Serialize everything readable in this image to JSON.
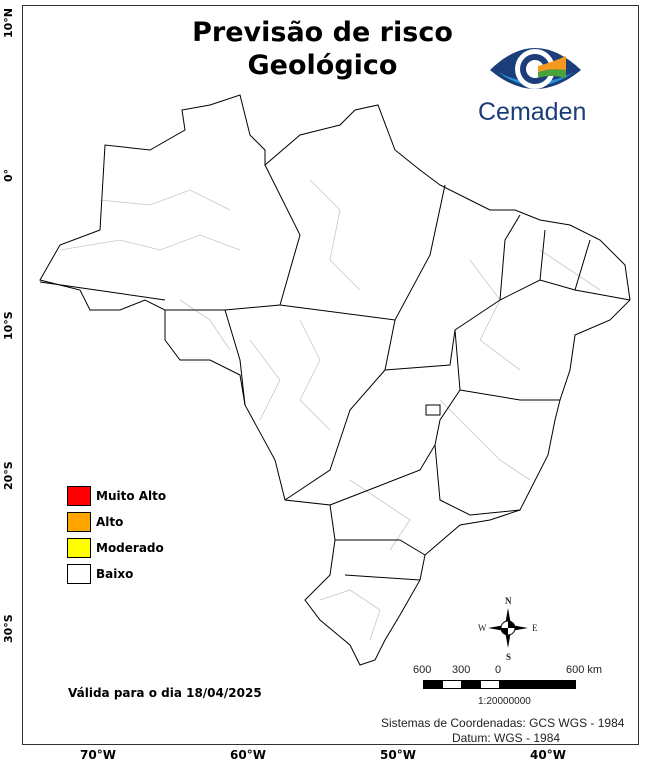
{
  "title_line1": "Previsão de risco",
  "title_line2": "Geológico",
  "logo": {
    "text": "Cemaden",
    "colors": [
      "#1b3e7a",
      "#2a8fd6",
      "#f39a1e",
      "#4aa33a"
    ]
  },
  "lat_labels": [
    "10°N",
    "0°",
    "10°S",
    "20°S",
    "30°S"
  ],
  "lon_labels": [
    "70°W",
    "60°W",
    "50°W",
    "40°W"
  ],
  "legend": [
    {
      "label": "Muito Alto",
      "color": "#ff0000"
    },
    {
      "label": "Alto",
      "color": "#ffa500"
    },
    {
      "label": "Moderado",
      "color": "#ffff00"
    },
    {
      "label": "Baixo",
      "color": "#ffffff"
    }
  ],
  "valid_text": "Válida para o dia 18/04/2025",
  "compass": {
    "n": "N",
    "s": "S",
    "e": "E",
    "w": "W"
  },
  "scale": {
    "labels": [
      "600",
      "300",
      "0",
      "600 km"
    ],
    "ratio": "1:20000000"
  },
  "crs": "Sistemas de Coordenadas: GCS WGS - 1984",
  "datum": "Datum: WGS - 1984"
}
